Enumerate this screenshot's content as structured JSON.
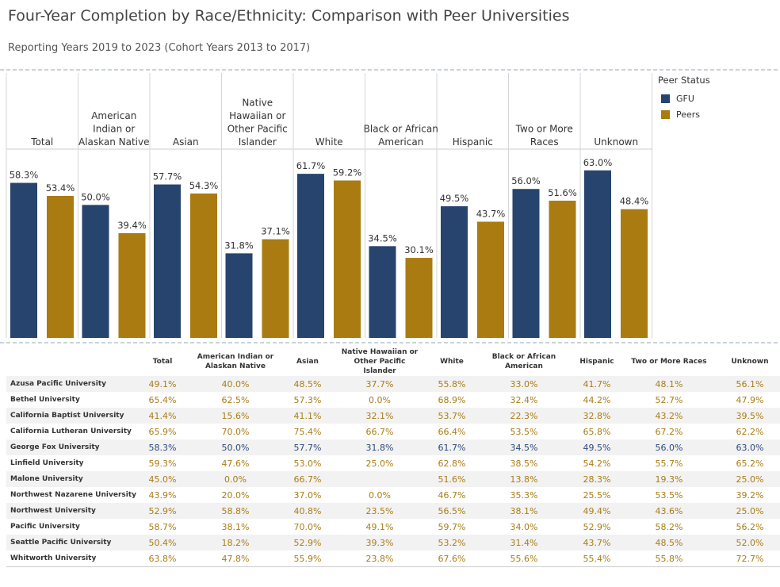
{
  "title": "Four-Year Completion by Race/Ethnicity: Comparison with Peer Universities",
  "subtitle": "Reporting Years 2019 to 2023 (Cohort Years 2013 to 2017)",
  "legend": {
    "title": "Peer Status",
    "items": [
      {
        "label": "GFU",
        "color": "#26446d"
      },
      {
        "label": "Peers",
        "color": "#a97b11"
      }
    ]
  },
  "chart_data": {
    "type": "bar",
    "title": "Four-Year Completion by Race/Ethnicity: Comparison with Peer Universities",
    "categories": [
      "Total",
      "American Indian or Alaskan Native",
      "Asian",
      "Native Hawaiian or Other Pacific Islander",
      "White",
      "Black or African American",
      "Hispanic",
      "Two or More Races",
      "Unknown"
    ],
    "category_lines": [
      [
        "Total"
      ],
      [
        "American",
        "Indian or",
        "Alaskan Native"
      ],
      [
        "Asian"
      ],
      [
        "Native",
        "Hawaiian or",
        "Other Pacific",
        "Islander"
      ],
      [
        "White"
      ],
      [
        "Black or African",
        "American"
      ],
      [
        "Hispanic"
      ],
      [
        "Two or More",
        "Races"
      ],
      [
        "Unknown"
      ]
    ],
    "series": [
      {
        "name": "GFU",
        "color": "#26446d",
        "values": [
          58.3,
          50.0,
          57.7,
          31.8,
          61.7,
          34.5,
          49.5,
          56.0,
          63.0
        ],
        "labels": [
          "58.3%",
          "50.0%",
          "57.7%",
          "31.8%",
          "61.7%",
          "34.5%",
          "49.5%",
          "56.0%",
          "63.0%"
        ]
      },
      {
        "name": "Peers",
        "color": "#a97b11",
        "values": [
          53.4,
          39.4,
          54.3,
          37.1,
          59.2,
          30.1,
          43.7,
          51.6,
          48.4
        ],
        "labels": [
          "53.4%",
          "39.4%",
          "54.3%",
          "37.1%",
          "59.2%",
          "30.1%",
          "43.7%",
          "51.6%",
          "48.4%"
        ]
      }
    ],
    "ylim": [
      0,
      68
    ],
    "xlabel": "",
    "ylabel": "",
    "legend_position": "right"
  },
  "table": {
    "headers": [
      [
        "Total"
      ],
      [
        "American Indian or",
        "Alaskan Native"
      ],
      [
        "Asian"
      ],
      [
        "Native Hawaiian or",
        "Other Pacific",
        "Islander"
      ],
      [
        "White"
      ],
      [
        "Black or African",
        "American"
      ],
      [
        "Hispanic"
      ],
      [
        "Two or More Races"
      ],
      [
        "Unknown"
      ]
    ],
    "rows": [
      {
        "name": "Azusa Pacific University",
        "values": [
          "49.1%",
          "40.0%",
          "48.5%",
          "37.7%",
          "55.8%",
          "33.0%",
          "41.7%",
          "48.1%",
          "56.1%"
        ]
      },
      {
        "name": "Bethel University",
        "values": [
          "65.4%",
          "62.5%",
          "57.3%",
          "0.0%",
          "68.9%",
          "32.4%",
          "44.2%",
          "52.7%",
          "47.9%"
        ]
      },
      {
        "name": "California Baptist University",
        "values": [
          "41.4%",
          "15.6%",
          "41.1%",
          "32.1%",
          "53.7%",
          "22.3%",
          "32.8%",
          "43.2%",
          "39.5%"
        ]
      },
      {
        "name": "California Lutheran University",
        "values": [
          "65.9%",
          "70.0%",
          "75.4%",
          "66.7%",
          "66.4%",
          "53.5%",
          "65.8%",
          "67.2%",
          "62.2%"
        ]
      },
      {
        "name": "George Fox University",
        "gfu": true,
        "values": [
          "58.3%",
          "50.0%",
          "57.7%",
          "31.8%",
          "61.7%",
          "34.5%",
          "49.5%",
          "56.0%",
          "63.0%"
        ]
      },
      {
        "name": "Linfield University",
        "values": [
          "59.3%",
          "47.6%",
          "53.0%",
          "25.0%",
          "62.8%",
          "38.5%",
          "54.2%",
          "55.7%",
          "65.2%"
        ]
      },
      {
        "name": "Malone University",
        "values": [
          "45.0%",
          "0.0%",
          "66.7%",
          "",
          "51.6%",
          "13.8%",
          "28.3%",
          "19.3%",
          "25.0%"
        ]
      },
      {
        "name": "Northwest Nazarene University",
        "values": [
          "43.9%",
          "20.0%",
          "37.0%",
          "0.0%",
          "46.7%",
          "35.3%",
          "25.5%",
          "53.5%",
          "39.2%"
        ]
      },
      {
        "name": "Northwest University",
        "values": [
          "52.9%",
          "58.8%",
          "40.8%",
          "23.5%",
          "56.5%",
          "38.1%",
          "49.4%",
          "43.6%",
          "25.0%"
        ]
      },
      {
        "name": "Pacific University",
        "values": [
          "58.7%",
          "38.1%",
          "70.0%",
          "49.1%",
          "59.7%",
          "34.0%",
          "52.9%",
          "58.2%",
          "56.2%"
        ]
      },
      {
        "name": "Seattle Pacific University",
        "values": [
          "50.4%",
          "18.2%",
          "52.9%",
          "39.3%",
          "53.2%",
          "31.4%",
          "43.7%",
          "48.5%",
          "52.0%"
        ]
      },
      {
        "name": "Whitworth University",
        "values": [
          "63.8%",
          "47.8%",
          "55.9%",
          "23.8%",
          "67.6%",
          "55.6%",
          "55.4%",
          "55.8%",
          "72.7%"
        ]
      }
    ]
  }
}
